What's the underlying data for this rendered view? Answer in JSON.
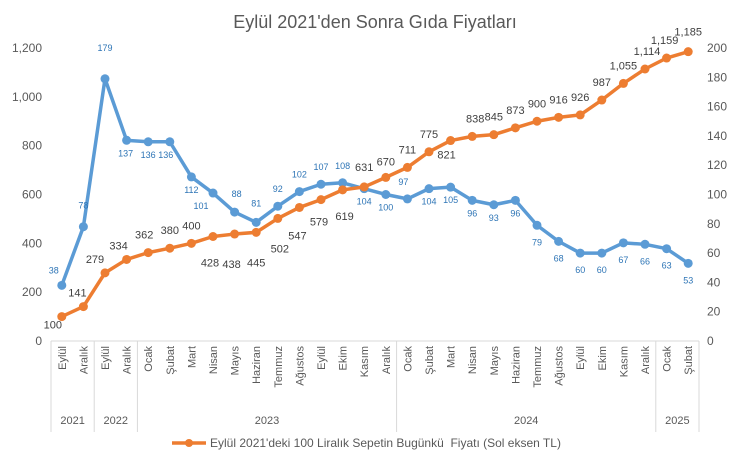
{
  "chart_data": {
    "type": "line",
    "title": "Eylül 2021'den Sonra Gıda Fiyatları",
    "categories": [
      "Eylül",
      "Aralık",
      "Eylül",
      "Aralık",
      "Ocak",
      "Şubat",
      "Mart",
      "Nisan",
      "Mayıs",
      "Haziran",
      "Temmuz",
      "Ağustos",
      "Eylül",
      "Ekim",
      "Kasım",
      "Aralık",
      "Ocak",
      "Şubat",
      "Mart",
      "Nisan",
      "Mayıs",
      "Haziran",
      "Temmuz",
      "Ağustos",
      "Eylül",
      "Ekim",
      "Kasım",
      "Aralık",
      "Ocak",
      "Şubat"
    ],
    "year_groups": [
      {
        "label": "2021",
        "count": 2
      },
      {
        "label": "2022",
        "count": 2
      },
      {
        "label": "2023",
        "count": 12
      },
      {
        "label": "2024",
        "count": 12
      },
      {
        "label": "2025",
        "count": 2
      }
    ],
    "series": [
      {
        "name": "Eylül 2021'deki 100 Liralık Sepetin Bugünkü  Fiyatı (Sol eksen TL)",
        "axis": "left",
        "color": "#ed7d31",
        "values": [
          100,
          141,
          279,
          334,
          362,
          380,
          400,
          428,
          438,
          445,
          502,
          547,
          579,
          619,
          631,
          670,
          711,
          775,
          821,
          838,
          845,
          873,
          900,
          916,
          926,
          987,
          1055,
          1114,
          1159,
          1185
        ],
        "labels": [
          "100",
          "141",
          "279",
          "334",
          "362",
          "380",
          "400",
          "428",
          "438",
          "445",
          "502",
          "547",
          "579",
          "619",
          "631",
          "670",
          "711",
          "775",
          "821",
          "838",
          "845",
          "873",
          "900",
          "916",
          "926",
          "987",
          "1,055",
          "1,114",
          "1,159",
          "1,185"
        ]
      },
      {
        "axis": "right",
        "color": "#5b9bd5",
        "values": [
          38,
          78,
          179,
          137,
          136,
          136,
          112,
          101,
          88,
          81,
          92,
          102,
          107,
          108,
          104,
          100,
          97,
          104,
          105,
          96,
          93,
          96,
          79,
          68,
          60,
          60,
          67,
          66,
          63,
          53
        ]
      }
    ],
    "y_left": {
      "range": [
        0,
        1200
      ],
      "ticks": [
        "0",
        "200",
        "400",
        "600",
        "800",
        "1,000",
        "1,200"
      ]
    },
    "y_right": {
      "range": [
        0,
        200
      ],
      "ticks": [
        "0",
        "20",
        "40",
        "60",
        "80",
        "100",
        "120",
        "140",
        "160",
        "180",
        "200"
      ]
    },
    "grid": false,
    "legend": "bottom"
  }
}
